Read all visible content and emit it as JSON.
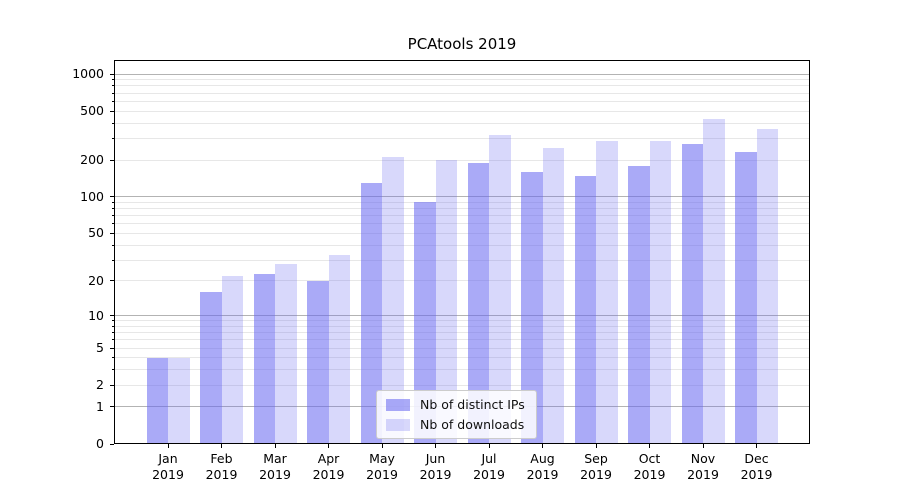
{
  "chart_data": {
    "type": "bar",
    "title": "PCAtools 2019",
    "yscale": "log1p",
    "xlabel": "",
    "ylabel": "",
    "ylim": [
      0,
      1300
    ],
    "grid": true,
    "categories": [
      "Jan",
      "Feb",
      "Mar",
      "Apr",
      "May",
      "Jun",
      "Jul",
      "Aug",
      "Sep",
      "Oct",
      "Nov",
      "Dec"
    ],
    "x_tick_year": "2019",
    "series": [
      {
        "name": "Nb of distinct IPs",
        "color": "#6464f0",
        "alpha": 0.55,
        "values": [
          4,
          16,
          23,
          20,
          130,
          90,
          190,
          160,
          148,
          178,
          268,
          233
        ]
      },
      {
        "name": "Nb of downloads",
        "color": "#6464f0",
        "alpha": 0.25,
        "values": [
          4,
          22,
          28,
          33,
          210,
          200,
          320,
          250,
          285,
          285,
          430,
          360
        ]
      }
    ],
    "y_ticks_labeled": [
      1000,
      500,
      200,
      100,
      50,
      20,
      10,
      5,
      2,
      1,
      0
    ],
    "y_gridlines_major": [
      1,
      10,
      100,
      1000
    ],
    "y_gridlines_minor": [
      2,
      3,
      4,
      5,
      6,
      7,
      8,
      9,
      20,
      30,
      40,
      50,
      60,
      70,
      80,
      90,
      200,
      300,
      400,
      500,
      600,
      700,
      800,
      900
    ],
    "legend_position": "lower center",
    "colors": {
      "grid_major": "#b3b3b3",
      "grid_minor": "#e7e7e7",
      "spine": "#000000",
      "text": "#000000",
      "background": "#ffffff"
    }
  }
}
